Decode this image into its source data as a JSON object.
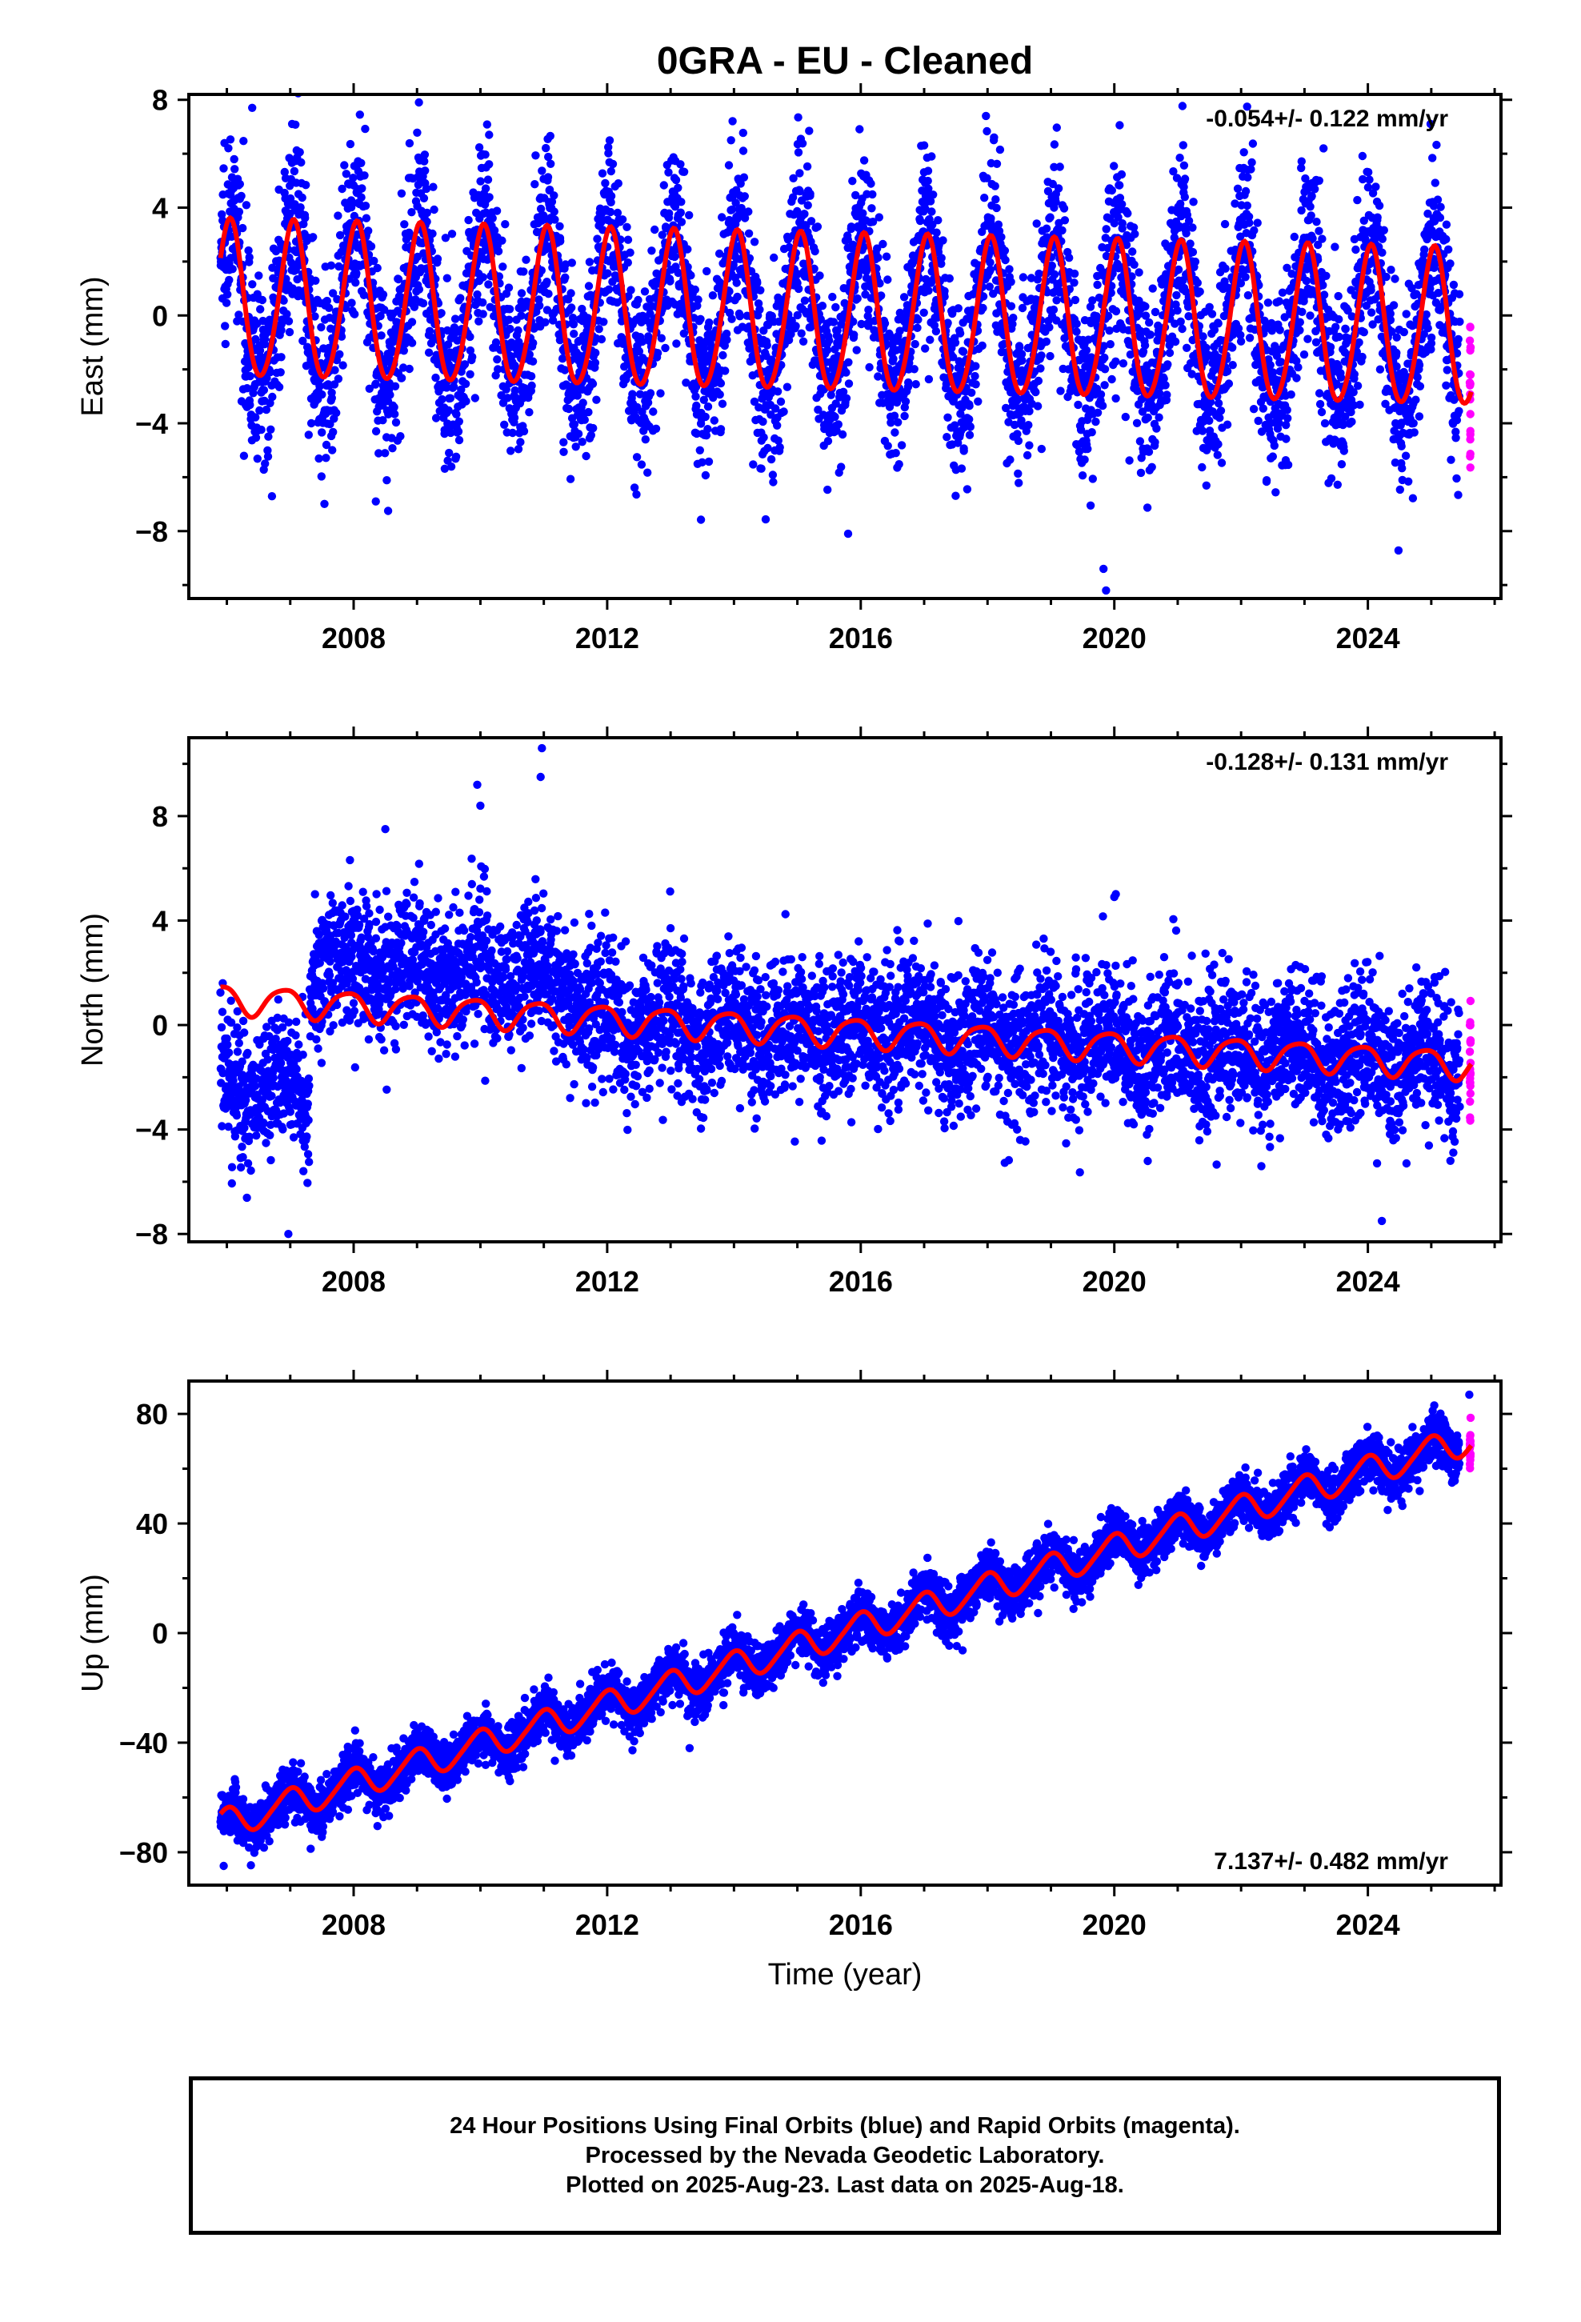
{
  "title": "0GRA  - EU - Cleaned",
  "xlabel": "Time (year)",
  "footer": {
    "line1": "24 Hour Positions Using Final Orbits (blue) and Rapid Orbits (magenta).",
    "line2": "Processed by the Nevada Geodetic Laboratory.",
    "line3": "Plotted on 2025-Aug-23. Last data on 2025-Aug-18."
  },
  "colors": {
    "final": "#0000ff",
    "rapid": "#ff00ff",
    "model": "#ff0000",
    "axis": "#000000"
  },
  "chart_data": [
    {
      "type": "scatter",
      "panel": "East",
      "ylabel": "East (mm)",
      "rate_label": "-0.054+/- 0.122 mm/yr",
      "rate_position": "top-right",
      "xlim": [
        2005.4,
        2026.1
      ],
      "ylim": [
        -10.5,
        8.2
      ],
      "xticks": [
        2008,
        2012,
        2016,
        2020,
        2024
      ],
      "yticks": [
        -8,
        -4,
        0,
        4,
        8
      ],
      "data_start": 2005.9,
      "data_end": 2025.63,
      "rapid_start": 2025.45,
      "model": {
        "offset": 0.5,
        "trend": -0.054,
        "annual_amp": 2.9,
        "annual_phase": 1.3,
        "semiannual_amp": 0.25,
        "semiannual_phase": 0.5,
        "steps": []
      },
      "noise_sd": 1.7,
      "outliers": [
        [
          2019.87,
          -10.2
        ],
        [
          2019.83,
          -9.4
        ],
        [
          2015.8,
          -8.1
        ],
        [
          2006.4,
          7.7
        ],
        [
          2023.3,
          6.2
        ],
        [
          2008.35,
          -6.9
        ]
      ],
      "series": [
        {
          "name": "Final Orbits (blue)",
          "color": "#0000ff"
        },
        {
          "name": "Rapid Orbits (magenta)",
          "color": "#ff00ff"
        }
      ]
    },
    {
      "type": "scatter",
      "panel": "North",
      "ylabel": "North (mm)",
      "rate_label": "-0.128+/- 0.131 mm/yr",
      "rate_position": "top-right",
      "xlim": [
        2005.4,
        2026.1
      ],
      "ylim": [
        -8.3,
        11.0
      ],
      "xticks": [
        2008,
        2012,
        2016,
        2020,
        2024
      ],
      "yticks": [
        -8,
        -4,
        0,
        4,
        8
      ],
      "data_start": 2005.9,
      "data_end": 2025.63,
      "rapid_start": 2025.45,
      "model": {
        "offset": 1.0,
        "trend": -0.128,
        "annual_amp": 0.55,
        "annual_phase": 2.2,
        "semiannual_amp": 0.1,
        "semiannual_phase": 0.0,
        "steps": []
      },
      "data_steps": [
        {
          "start": 2005.9,
          "end": 2007.3,
          "shift": -3.3
        },
        {
          "start": 2007.3,
          "end": 2011.5,
          "shift": 1.5
        }
      ],
      "noise_sd": 1.35,
      "outliers": [
        [
          2010.97,
          10.6
        ],
        [
          2010.95,
          9.5
        ],
        [
          2009.95,
          9.2
        ],
        [
          2010.0,
          8.4
        ],
        [
          2006.97,
          -8.0
        ],
        [
          2024.22,
          -7.5
        ],
        [
          2008.5,
          7.5
        ],
        [
          2020.0,
          4.9
        ]
      ],
      "series": [
        {
          "name": "Final Orbits (blue)",
          "color": "#0000ff"
        },
        {
          "name": "Rapid Orbits (magenta)",
          "color": "#ff00ff"
        }
      ]
    },
    {
      "type": "scatter",
      "panel": "Up",
      "ylabel": "Up (mm)",
      "rate_label": "7.137+/- 0.482 mm/yr",
      "rate_position": "bottom-right",
      "xlim": [
        2005.4,
        2026.1
      ],
      "ylim": [
        -92,
        92
      ],
      "xticks": [
        2008,
        2012,
        2016,
        2020,
        2024
      ],
      "yticks": [
        -80,
        -40,
        0,
        40,
        80
      ],
      "data_start": 2005.9,
      "data_end": 2025.63,
      "rapid_start": 2025.45,
      "model": {
        "offset": -70,
        "trend": 7.137,
        "annual_amp": 5.3,
        "annual_phase": 1.7,
        "semiannual_amp": 0.8,
        "semiannual_phase": 0.3,
        "steps": []
      },
      "noise_sd": 4.6,
      "outliers": [
        [
          2025.6,
          87
        ],
        [
          2005.95,
          -85
        ],
        [
          2013.3,
          -42
        ]
      ],
      "series": [
        {
          "name": "Final Orbits (blue)",
          "color": "#0000ff"
        },
        {
          "name": "Rapid Orbits (magenta)",
          "color": "#ff00ff"
        }
      ]
    }
  ]
}
